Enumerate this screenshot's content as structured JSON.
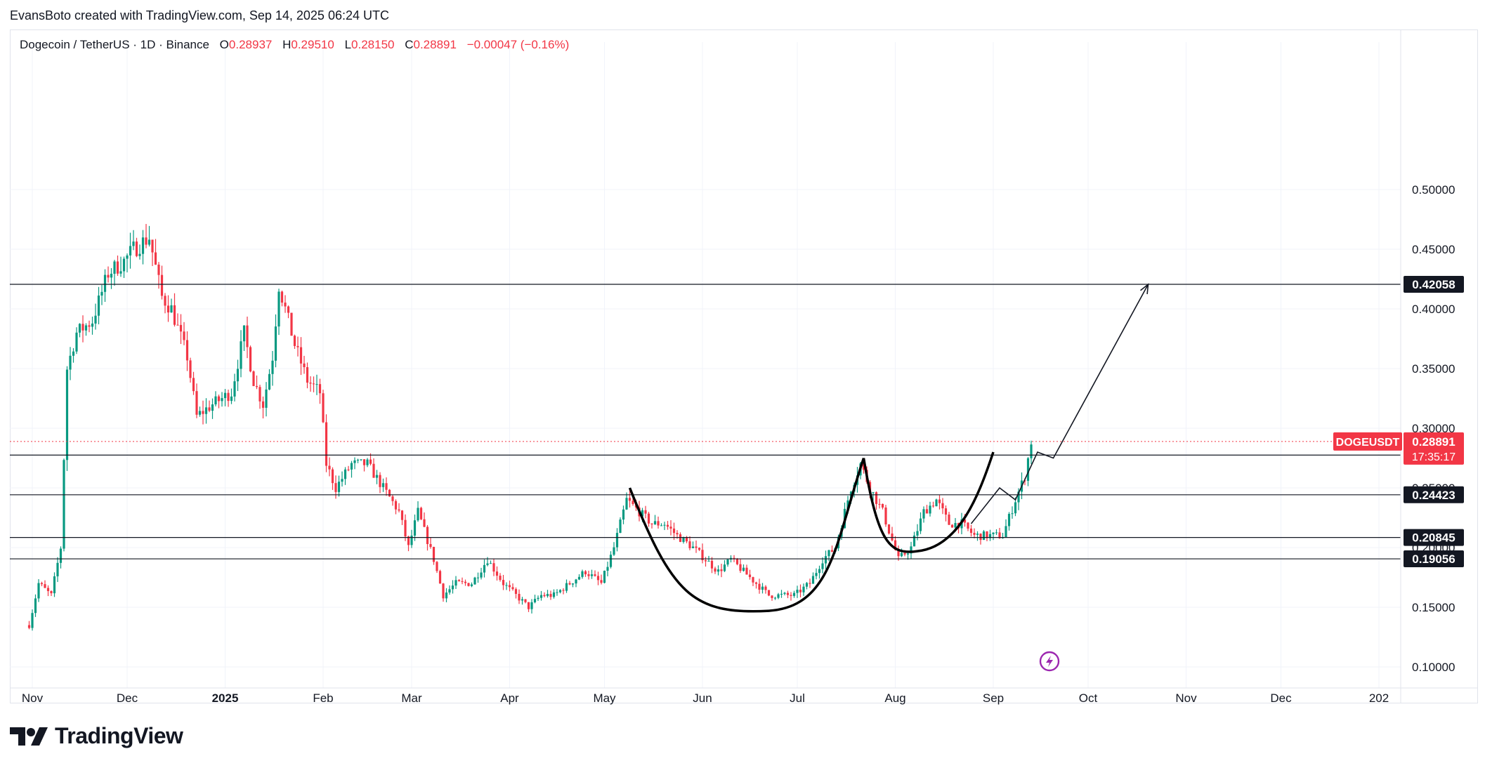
{
  "header": {
    "attribution": "EvansBoto created with TradingView.com, Sep 14, 2025 06:24 UTC"
  },
  "legend": {
    "symbol": "Dogecoin / TetherUS · 1D · Binance",
    "o_label": "O",
    "o_value": "0.28937",
    "h_label": "H",
    "h_value": "0.29510",
    "l_label": "L",
    "l_value": "0.28150",
    "c_label": "C",
    "c_value": "0.28891",
    "change": "−0.00047 (−0.16%)"
  },
  "brand": {
    "name": "TradingView"
  },
  "colors": {
    "up": "#089981",
    "down": "#f23645",
    "badge_dark": "#131722",
    "price_badge": "#f23645",
    "pattern": "#000000"
  },
  "chart_data": {
    "type": "candlestick",
    "symbol_badge": "DOGEUSDT",
    "last_price": "0.28891",
    "countdown": "17:35:17",
    "y_axis": {
      "min": 0.1,
      "max": 0.5,
      "ticks": [
        "0.10000",
        "0.15000",
        "0.20000",
        "0.25000",
        "0.30000",
        "0.35000",
        "0.40000",
        "0.45000",
        "0.50000"
      ]
    },
    "x_axis": {
      "labels": [
        "Nov",
        "Dec",
        "2025",
        "Feb",
        "Mar",
        "Apr",
        "May",
        "Jun",
        "Jul",
        "Aug",
        "Sep",
        "Oct",
        "Nov",
        "Dec",
        "202"
      ]
    },
    "horizontal_levels": [
      "0.42058",
      "0.27748",
      "0.24423",
      "0.20845",
      "0.19056"
    ],
    "price_path": [
      [
        "2024-10-31",
        0.135
      ],
      [
        "2024-11-03",
        0.17
      ],
      [
        "2024-11-07",
        0.16
      ],
      [
        "2024-11-10",
        0.2
      ],
      [
        "2024-11-12",
        0.35
      ],
      [
        "2024-11-15",
        0.38
      ],
      [
        "2024-11-20",
        0.39
      ],
      [
        "2024-11-25",
        0.43
      ],
      [
        "2024-11-30",
        0.44
      ],
      [
        "2024-12-03",
        0.45
      ],
      [
        "2024-12-08",
        0.46
      ],
      [
        "2024-12-12",
        0.41
      ],
      [
        "2024-12-15",
        0.4
      ],
      [
        "2024-12-20",
        0.36
      ],
      [
        "2024-12-23",
        0.31
      ],
      [
        "2024-12-28",
        0.32
      ],
      [
        "2025-01-03",
        0.33
      ],
      [
        "2025-01-07",
        0.38
      ],
      [
        "2025-01-10",
        0.34
      ],
      [
        "2025-01-13",
        0.32
      ],
      [
        "2025-01-16",
        0.36
      ],
      [
        "2025-01-18",
        0.42
      ],
      [
        "2025-01-20",
        0.4
      ],
      [
        "2025-01-23",
        0.37
      ],
      [
        "2025-01-27",
        0.34
      ],
      [
        "2025-01-31",
        0.33
      ],
      [
        "2025-02-02",
        0.27
      ],
      [
        "2025-02-05",
        0.25
      ],
      [
        "2025-02-10",
        0.27
      ],
      [
        "2025-02-15",
        0.27
      ],
      [
        "2025-02-20",
        0.25
      ],
      [
        "2025-02-25",
        0.23
      ],
      [
        "2025-02-28",
        0.2
      ],
      [
        "2025-03-03",
        0.23
      ],
      [
        "2025-03-08",
        0.19
      ],
      [
        "2025-03-11",
        0.16
      ],
      [
        "2025-03-15",
        0.17
      ],
      [
        "2025-03-20",
        0.17
      ],
      [
        "2025-03-25",
        0.19
      ],
      [
        "2025-03-30",
        0.17
      ],
      [
        "2025-04-03",
        0.16
      ],
      [
        "2025-04-07",
        0.15
      ],
      [
        "2025-04-11",
        0.16
      ],
      [
        "2025-04-15",
        0.16
      ],
      [
        "2025-04-20",
        0.17
      ],
      [
        "2025-04-25",
        0.18
      ],
      [
        "2025-04-30",
        0.17
      ],
      [
        "2025-05-04",
        0.2
      ],
      [
        "2025-05-08",
        0.24
      ],
      [
        "2025-05-12",
        0.23
      ],
      [
        "2025-05-16",
        0.22
      ],
      [
        "2025-05-20",
        0.22
      ],
      [
        "2025-05-24",
        0.21
      ],
      [
        "2025-05-29",
        0.2
      ],
      [
        "2025-06-02",
        0.19
      ],
      [
        "2025-06-06",
        0.18
      ],
      [
        "2025-06-10",
        0.19
      ],
      [
        "2025-06-14",
        0.18
      ],
      [
        "2025-06-18",
        0.17
      ],
      [
        "2025-06-22",
        0.16
      ],
      [
        "2025-06-26",
        0.16
      ],
      [
        "2025-06-30",
        0.16
      ],
      [
        "2025-07-05",
        0.17
      ],
      [
        "2025-07-09",
        0.19
      ],
      [
        "2025-07-13",
        0.2
      ],
      [
        "2025-07-18",
        0.25
      ],
      [
        "2025-07-21",
        0.27
      ],
      [
        "2025-07-24",
        0.25
      ],
      [
        "2025-07-28",
        0.23
      ],
      [
        "2025-08-02",
        0.19
      ],
      [
        "2025-08-06",
        0.2
      ],
      [
        "2025-08-10",
        0.23
      ],
      [
        "2025-08-14",
        0.24
      ],
      [
        "2025-08-18",
        0.22
      ],
      [
        "2025-08-22",
        0.22
      ],
      [
        "2025-08-26",
        0.21
      ],
      [
        "2025-08-31",
        0.21
      ],
      [
        "2025-09-04",
        0.21
      ],
      [
        "2025-09-08",
        0.24
      ],
      [
        "2025-09-11",
        0.26
      ],
      [
        "2025-09-13",
        0.289
      ]
    ],
    "cup_handle_pattern": {
      "cup_left": [
        "2025-05-09",
        0.25
      ],
      "cup_bottom": [
        "2025-06-22",
        0.147
      ],
      "cup_right": [
        "2025-07-22",
        0.275
      ],
      "handle_bottom": [
        "2025-08-08",
        0.197
      ],
      "handle_end": [
        "2025-09-01",
        0.28
      ]
    },
    "projection_path": [
      [
        "2025-08-25",
        0.22
      ],
      [
        "2025-09-03",
        0.25
      ],
      [
        "2025-09-08",
        0.24
      ],
      [
        "2025-09-15",
        0.28
      ],
      [
        "2025-09-20",
        0.275
      ],
      [
        "2025-10-20",
        0.42058
      ]
    ]
  }
}
